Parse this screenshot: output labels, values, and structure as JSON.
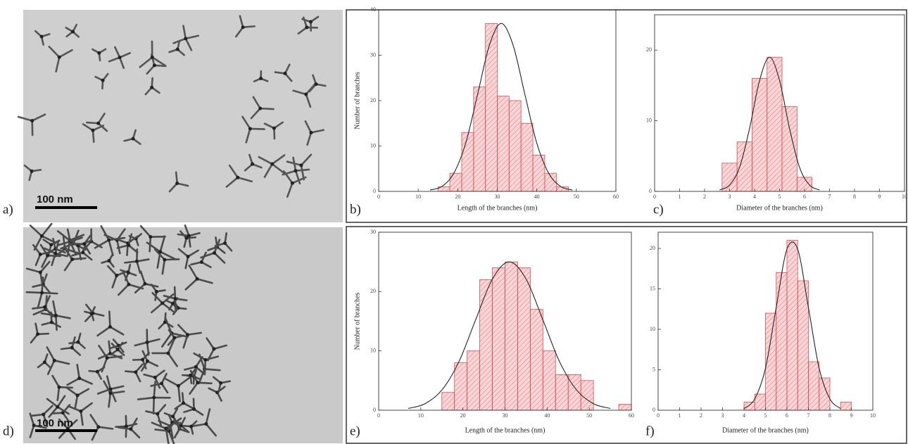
{
  "images": [
    {
      "panel_label": "a)",
      "scale_bar": "100 nm"
    },
    {
      "panel_label": "d)",
      "scale_bar": "100 nm"
    }
  ],
  "chart_data": [
    {
      "type": "histogram",
      "panel_label": "b)",
      "xlabel": "Length of the branches (nm)",
      "ylabel": "Number of branches",
      "bins": [
        15,
        18,
        21,
        24,
        27,
        30,
        33,
        36,
        39,
        42,
        45,
        48
      ],
      "values": [
        1,
        4,
        13,
        23,
        37,
        21,
        20,
        15,
        8,
        4,
        1
      ],
      "color": "#e34a4f",
      "fit": {
        "x": [
          13,
          16,
          19,
          22,
          25,
          28,
          31,
          34,
          37,
          40,
          43,
          46,
          49
        ],
        "values": [
          0.3,
          1.1,
          4,
          10.6,
          21.3,
          32.2,
          37,
          32.2,
          21.3,
          10.6,
          4,
          1.1,
          0.3
        ],
        "color": "#222222"
      },
      "xlim": [
        0,
        60
      ],
      "xticks": [
        0,
        10,
        20,
        30,
        40,
        50,
        60
      ],
      "ylim": [
        0,
        40
      ],
      "yticks": [
        0,
        10,
        20,
        30,
        40
      ]
    },
    {
      "type": "histogram",
      "panel_label": "c)",
      "xlabel": "Diameter of the branches (nm)",
      "bins": [
        2.7,
        3.3,
        3.9,
        4.5,
        5.1,
        5.7,
        6.3
      ],
      "values": [
        4,
        7,
        16,
        19,
        12,
        2
      ],
      "color": "#e34a4f",
      "fit": {
        "x": [
          2.6,
          3,
          3.4,
          3.8,
          4.2,
          4.6,
          5,
          5.4,
          5.8,
          6.2,
          6.6
        ],
        "values": [
          0.2,
          0.9,
          3.4,
          8.9,
          15.7,
          19,
          15.7,
          8.9,
          3.4,
          0.9,
          0.2
        ],
        "color": "#222222"
      },
      "xlim": [
        0,
        10
      ],
      "xticks": [
        0,
        1,
        2,
        3,
        4,
        5,
        6,
        7,
        8,
        9,
        10
      ],
      "ylim": [
        0,
        25
      ],
      "yticks": [
        0,
        10,
        20
      ]
    },
    {
      "type": "histogram",
      "panel_label": "e)",
      "xlabel": "Length of the branches (nm)",
      "ylabel": "Number of branches",
      "bins": [
        15,
        18,
        21,
        24,
        27,
        30,
        33,
        36,
        39,
        42,
        45,
        48,
        51,
        54,
        57,
        60
      ],
      "values": [
        3,
        8,
        10,
        22,
        24,
        25,
        24,
        17,
        10,
        6,
        6,
        5,
        0,
        0,
        1
      ],
      "color": "#e34a4f",
      "fit": {
        "x": [
          7,
          11,
          15,
          19,
          23,
          27,
          31,
          35,
          39,
          43,
          47,
          51,
          55
        ],
        "values": [
          0.3,
          1.1,
          3.4,
          8.1,
          15.2,
          22.1,
          25,
          22.1,
          15.2,
          8.1,
          3.4,
          1.1,
          0.3
        ],
        "color": "#222222"
      },
      "xlim": [
        0,
        60
      ],
      "xticks": [
        0,
        10,
        20,
        30,
        40,
        50,
        60
      ],
      "ylim": [
        0,
        30
      ],
      "yticks": [
        0,
        10,
        20,
        30
      ]
    },
    {
      "type": "histogram",
      "panel_label": "f)",
      "xlabel": "Diameter of the branches (nm)",
      "bins": [
        4,
        4.5,
        5,
        5.5,
        6,
        6.5,
        7,
        7.5,
        8,
        8.5,
        9
      ],
      "values": [
        1,
        2,
        12,
        17,
        21,
        16,
        6,
        4,
        0,
        1
      ],
      "color": "#e34a4f",
      "fit": {
        "x": [
          4,
          4.5,
          5,
          5.5,
          6,
          6.5,
          7,
          7.5,
          8,
          8.5
        ],
        "values": [
          0.2,
          1.4,
          5.2,
          12.7,
          19.9,
          19.9,
          12.7,
          5.2,
          1.4,
          0.2
        ],
        "color": "#222222"
      },
      "xlim": [
        0,
        10
      ],
      "xticks": [
        0,
        1,
        2,
        3,
        4,
        5,
        6,
        7,
        8,
        9,
        10
      ],
      "ylim": [
        0,
        22
      ],
      "yticks": [
        0,
        5,
        10,
        15,
        20
      ]
    }
  ]
}
